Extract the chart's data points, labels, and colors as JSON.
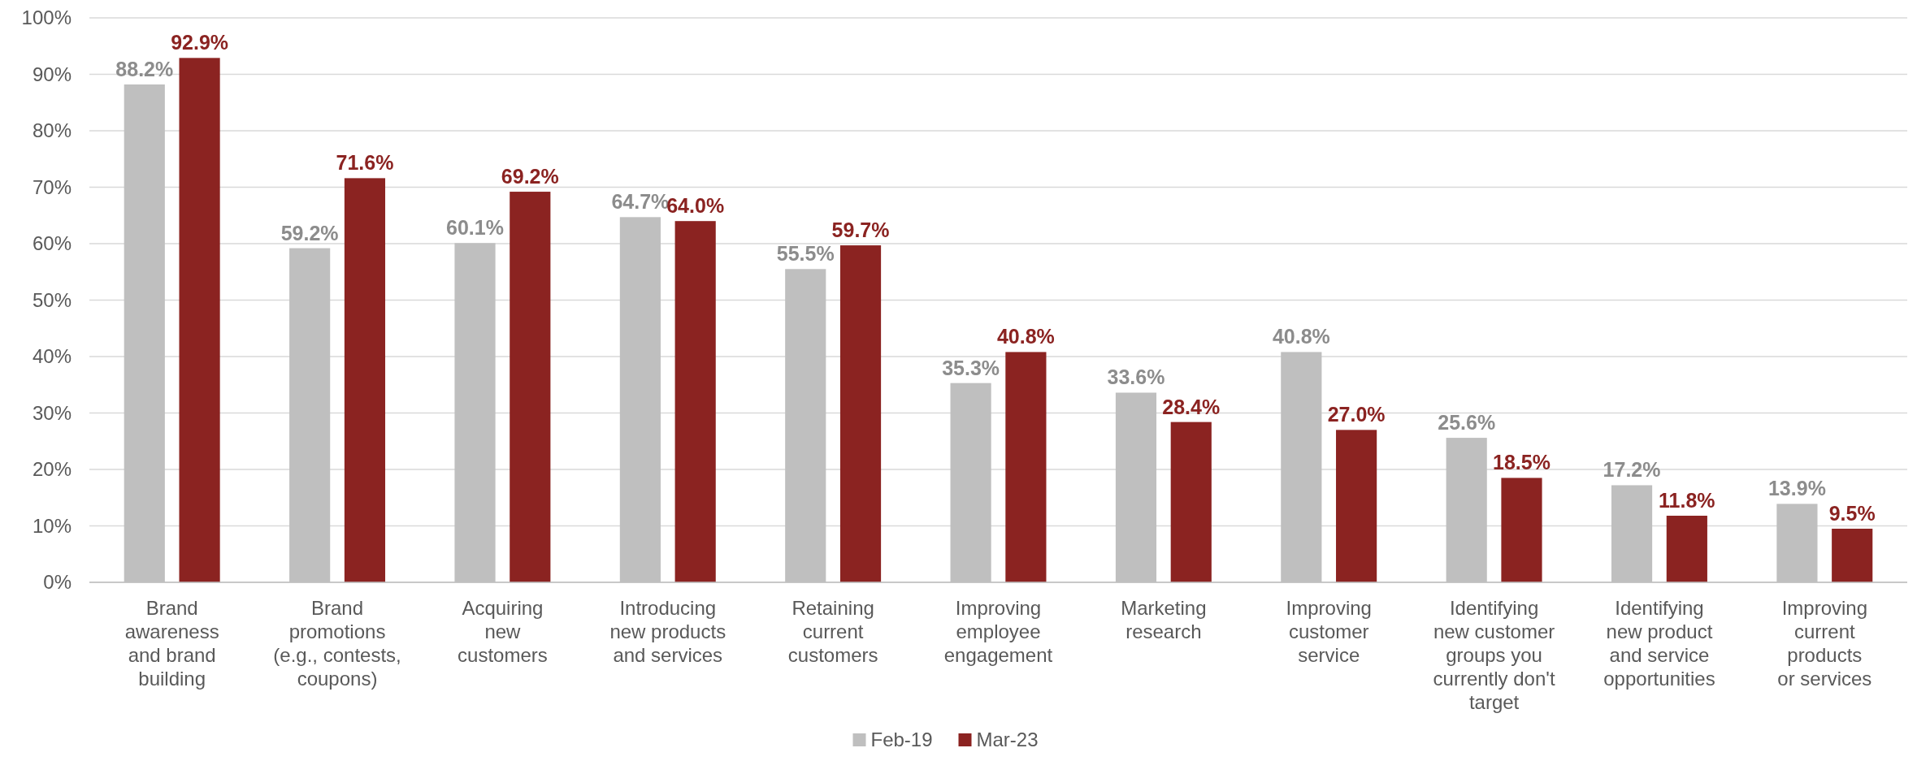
{
  "chart_data": {
    "type": "bar",
    "categories": [
      "Brand\nawareness\nand brand\nbuilding",
      "Brand\npromotions\n(e.g., contests,\ncoupons)",
      "Acquiring\nnew\ncustomers",
      "Introducing\nnew products\nand services",
      "Retaining\ncurrent\ncustomers",
      "Improving\nemployee\nengagement",
      "Marketing\nresearch",
      "Improving\ncustomer\nservice",
      "Identifying\nnew customer\ngroups you\ncurrently don't\ntarget",
      "Identifying\nnew product\nand service\nopportunities",
      "Improving\ncurrent\nproducts\nor services"
    ],
    "series": [
      {
        "name": "Feb-19",
        "color": "#bfbfbf",
        "values": [
          88.2,
          59.2,
          60.1,
          64.7,
          55.5,
          35.3,
          33.6,
          40.8,
          25.6,
          17.2,
          13.9
        ],
        "value_labels": [
          "88.2%",
          "59.2%",
          "60.1%",
          "64.7%",
          "55.5%",
          "35.3%",
          "33.6%",
          "40.8%",
          "25.6%",
          "17.2%",
          "13.9%"
        ]
      },
      {
        "name": "Mar-23",
        "color": "#8b2321",
        "values": [
          92.9,
          71.6,
          69.2,
          64.0,
          59.7,
          40.8,
          28.4,
          27.0,
          18.5,
          11.8,
          9.5
        ],
        "value_labels": [
          "92.9%",
          "71.6%",
          "69.2%",
          "64.0%",
          "59.7%",
          "40.8%",
          "28.4%",
          "27.0%",
          "18.5%",
          "11.8%",
          "9.5%"
        ]
      }
    ],
    "ylim": [
      0,
      100
    ],
    "yticks": [
      {
        "value": 0,
        "label": "0%"
      },
      {
        "value": 10,
        "label": "10%"
      },
      {
        "value": 20,
        "label": "20%"
      },
      {
        "value": 30,
        "label": "30%"
      },
      {
        "value": 40,
        "label": "40%"
      },
      {
        "value": 50,
        "label": "50%"
      },
      {
        "value": 60,
        "label": "60%"
      },
      {
        "value": 70,
        "label": "70%"
      },
      {
        "value": 80,
        "label": "80%"
      },
      {
        "value": 90,
        "label": "90%"
      },
      {
        "value": 100,
        "label": "100%"
      }
    ],
    "grid": "y",
    "legend": "bottom"
  }
}
